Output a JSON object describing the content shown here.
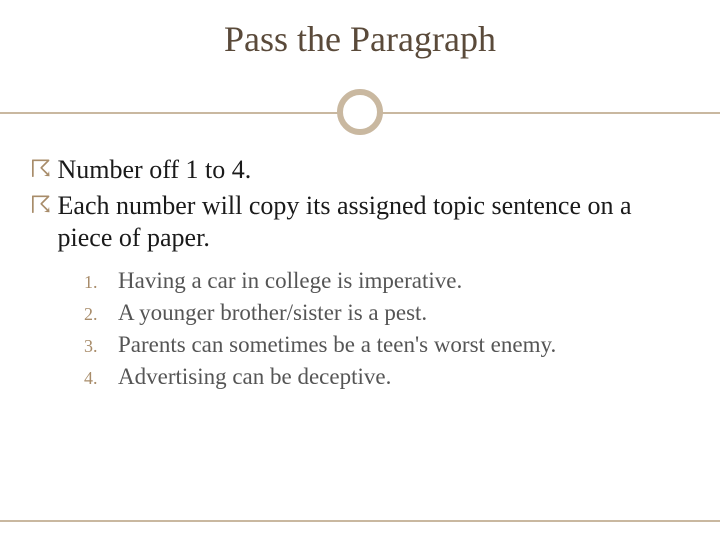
{
  "slide": {
    "title": "Pass the Paragraph",
    "title_color": "#5a4a3a",
    "title_fontsize": 36,
    "accent_color": "#c9b8a0",
    "bullet_color": "#a88c6a",
    "body_color": "#1a1a1a",
    "subtext_color": "#555555",
    "background_color": "#ffffff",
    "bullets": [
      "Number off 1 to 4.",
      "Each number will copy its assigned topic sentence on a piece of paper."
    ],
    "numbered_items": [
      {
        "n": "1.",
        "text": "Having a car in college is imperative."
      },
      {
        "n": "2.",
        "text": "A younger brother/sister is a pest."
      },
      {
        "n": "3.",
        "text": "Parents can sometimes be a teen's worst enemy."
      },
      {
        "n": "4.",
        "text": "Advertising can be deceptive."
      }
    ],
    "bullet_glyph": "☈"
  }
}
